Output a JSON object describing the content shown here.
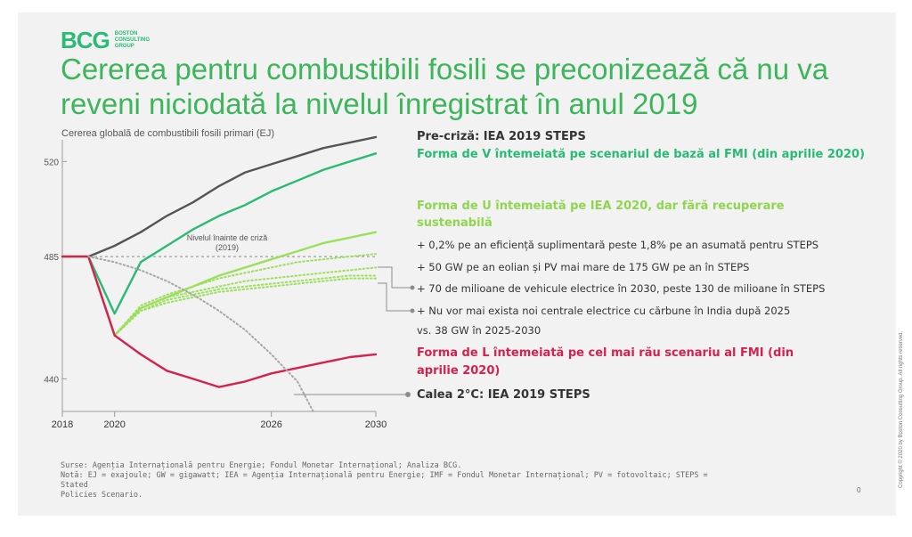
{
  "header": {
    "logo_mark": "BCG",
    "logo_text": "BOSTON CONSULTING GROUP",
    "title": "Cererea pentru combustibili fosili se preconizează că nu va reveni niciodată la nivelul înregistrat în anul 2019"
  },
  "chart_data": {
    "type": "line",
    "ylabel": "Cererea globală de combustibili fosili primari (EJ)",
    "x_ticks": [
      "2018",
      "2020",
      "2026",
      "2030"
    ],
    "y_ticks": [
      440,
      485,
      520
    ],
    "xlim": [
      2018,
      2030
    ],
    "ylim": [
      428,
      528
    ],
    "reference_line": {
      "y": 485,
      "label": "Nivelul înainte de criză (2019)"
    },
    "series": [
      {
        "name": "Pre-criză: IEA 2019 STEPS",
        "color": "#555555",
        "style": "solid",
        "points": [
          [
            2018,
            485
          ],
          [
            2019,
            485
          ],
          [
            2020,
            489
          ],
          [
            2021,
            494
          ],
          [
            2022,
            500
          ],
          [
            2023,
            505
          ],
          [
            2024,
            511
          ],
          [
            2025,
            516
          ],
          [
            2026,
            519
          ],
          [
            2027,
            522
          ],
          [
            2028,
            525
          ],
          [
            2029,
            527
          ],
          [
            2030,
            529
          ]
        ]
      },
      {
        "name": "Forma de V întemeiată pe scenariul de bază al FMI (din aprilie 2020)",
        "color": "#29ba74",
        "style": "solid",
        "points": [
          [
            2018,
            485
          ],
          [
            2019,
            485
          ],
          [
            2020,
            464
          ],
          [
            2021,
            483
          ],
          [
            2022,
            489
          ],
          [
            2023,
            495
          ],
          [
            2024,
            500
          ],
          [
            2025,
            504
          ],
          [
            2026,
            509
          ],
          [
            2027,
            513
          ],
          [
            2028,
            517
          ],
          [
            2029,
            520
          ],
          [
            2030,
            523
          ]
        ]
      },
      {
        "name": "Forma de U întemeiată pe IEA 2020, dar fără recuperare sustenabilă",
        "color": "#9ae05a",
        "style": "solid",
        "points": [
          [
            2018,
            485
          ],
          [
            2019,
            485
          ],
          [
            2020,
            456
          ],
          [
            2021,
            466
          ],
          [
            2022,
            470
          ],
          [
            2023,
            474
          ],
          [
            2024,
            478
          ],
          [
            2025,
            481
          ],
          [
            2026,
            484
          ],
          [
            2027,
            487
          ],
          [
            2028,
            490
          ],
          [
            2029,
            492
          ],
          [
            2030,
            494
          ]
        ]
      },
      {
        "name": "+ 0,2% pe an eficiență suplimentară",
        "color": "#9ae05a",
        "style": "dotted",
        "points": [
          [
            2020,
            456
          ],
          [
            2021,
            467
          ],
          [
            2022,
            471
          ],
          [
            2023,
            474
          ],
          [
            2024,
            477
          ],
          [
            2025,
            479
          ],
          [
            2026,
            481
          ],
          [
            2027,
            483
          ],
          [
            2028,
            484
          ],
          [
            2029,
            485
          ],
          [
            2030,
            486
          ]
        ]
      },
      {
        "name": "+ 50 GW pe an eolian și PV",
        "color": "#9ae05a",
        "style": "dotted",
        "points": [
          [
            2020,
            456
          ],
          [
            2021,
            466
          ],
          [
            2022,
            470
          ],
          [
            2023,
            472
          ],
          [
            2024,
            474
          ],
          [
            2025,
            476
          ],
          [
            2026,
            477
          ],
          [
            2027,
            478
          ],
          [
            2028,
            479
          ],
          [
            2029,
            480
          ],
          [
            2030,
            481
          ]
        ]
      },
      {
        "name": "+ 70 de milioane de vehicule electrice",
        "color": "#9ae05a",
        "style": "dotted",
        "points": [
          [
            2020,
            456
          ],
          [
            2021,
            465
          ],
          [
            2022,
            469
          ],
          [
            2023,
            471
          ],
          [
            2024,
            473
          ],
          [
            2025,
            474
          ],
          [
            2026,
            475
          ],
          [
            2027,
            476
          ],
          [
            2028,
            477
          ],
          [
            2029,
            478
          ],
          [
            2030,
            478
          ]
        ]
      },
      {
        "name": "+ Nu vor mai exista noi centrale electrice cu cărbune",
        "color": "#9ae05a",
        "style": "dotted",
        "points": [
          [
            2020,
            456
          ],
          [
            2021,
            465
          ],
          [
            2022,
            468
          ],
          [
            2023,
            470
          ],
          [
            2024,
            472
          ],
          [
            2025,
            473
          ],
          [
            2026,
            474
          ],
          [
            2027,
            475
          ],
          [
            2028,
            476
          ],
          [
            2029,
            477
          ],
          [
            2030,
            477
          ]
        ]
      },
      {
        "name": "Forma de L întemeiată pe cel mai rău scenariu al FMI (din aprilie 2020)",
        "color": "#d4224f",
        "style": "solid",
        "points": [
          [
            2018,
            485
          ],
          [
            2019,
            485
          ],
          [
            2020,
            456
          ],
          [
            2021,
            449
          ],
          [
            2022,
            443
          ],
          [
            2023,
            440
          ],
          [
            2024,
            437
          ],
          [
            2025,
            439
          ],
          [
            2026,
            442
          ],
          [
            2027,
            444
          ],
          [
            2028,
            446
          ],
          [
            2029,
            448
          ],
          [
            2030,
            449
          ]
        ]
      },
      {
        "name": "Calea 2°C: IEA 2019 STEPS",
        "color": "#a6a6a6",
        "style": "dotted",
        "points": [
          [
            2019,
            485
          ],
          [
            2020,
            483
          ],
          [
            2021,
            480
          ],
          [
            2022,
            476
          ],
          [
            2023,
            471
          ],
          [
            2024,
            465
          ],
          [
            2025,
            458
          ],
          [
            2026,
            449
          ],
          [
            2027,
            439
          ],
          [
            2027.6,
            428
          ]
        ]
      }
    ]
  },
  "legend": {
    "precriza": "Pre-criză: IEA 2019 STEPS",
    "v_shape": "Forma de V întemeiată pe scenariul de bază al FMI (din aprilie 2020)",
    "u_shape_1": "Forma de U întemeiată pe IEA 2020, dar fără recuperare",
    "u_shape_2": "sustenabilă",
    "bullet1": "+ 0,2% pe an eficiență suplimentară peste 1,8% pe an asumată pentru STEPS",
    "bullet2": "+ 50 GW pe an eolian și PV mai mare de 175 GW pe an în STEPS",
    "bullet3": "+ 70 de milioane de vehicule electrice în 2030, peste 130 de milioane în STEPS",
    "bullet4": "+ Nu vor mai exista noi centrale electrice cu cărbune în India după 2025",
    "bullet4b": "vs. 38 GW în 2025-2030",
    "l_shape_1": "Forma de L întemeiată pe cel mai rău scenariu al FMI (din",
    "l_shape_2": "aprilie 2020)",
    "path2c": "Calea 2°C: IEA 2019 STEPS"
  },
  "footer": {
    "line1": "Surse: Agenția Internațională pentru Energie; Fondul Monetar Internațional; Analiza BCG.",
    "line2": "Notă: EJ = exajoule; GW = gigawatt; IEA = Agenția Internațională pentru Energie; IMF = Fondul Monetar Internațional; PV = fotovoltaic; STEPS = Stated",
    "line3": "Policies Scenario.",
    "page": "0",
    "copyright": "Copyright © 2020 by Boston Consulting Group. All rights reserved."
  },
  "colors": {
    "accent_green": "#3cb55b",
    "v_green": "#29ba74",
    "u_green": "#9ae05a",
    "l_red": "#d4224f",
    "grey": "#555555"
  }
}
